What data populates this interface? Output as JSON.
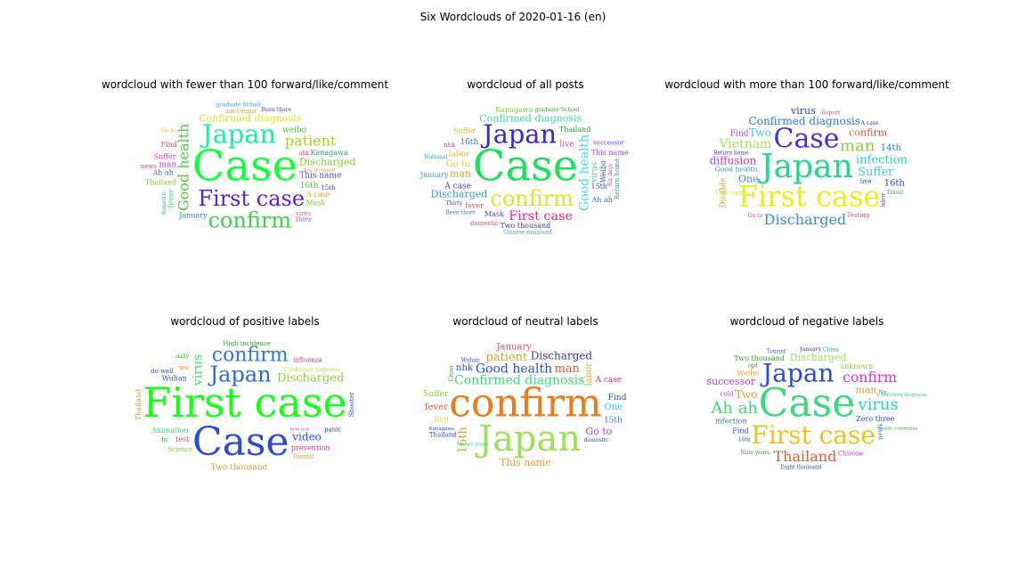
{
  "figure": {
    "suptitle": "Six Wordclouds of 2020-01-16 (en)"
  },
  "chart_data": [
    {
      "type": "wordcloud",
      "title": "wordcloud with fewer than 100 forward/like/comment",
      "words": [
        {
          "text": "Case",
          "size": 48,
          "color": "#16ff3a"
        },
        {
          "text": "Japan",
          "size": 48,
          "color": "#14f2a0"
        },
        {
          "text": "First case",
          "size": 24,
          "color": "#5a1fd6"
        },
        {
          "text": "confirm",
          "size": 24,
          "color": "#3fd14a"
        },
        {
          "text": "Good health",
          "size": 16,
          "color": "#4fca3a"
        },
        {
          "text": "patient",
          "size": 16,
          "color": "#a4d816"
        },
        {
          "text": "Confirmed diagnosis",
          "size": 11,
          "color": "#d6e81a"
        },
        {
          "text": "Discharged",
          "size": 11,
          "color": "#7bd02d"
        },
        {
          "text": "This name",
          "size": 9,
          "color": "#4a3ff0"
        },
        {
          "text": "weibo",
          "size": 9,
          "color": "#3ed12a"
        },
        {
          "text": "16th",
          "size": 9,
          "color": "#4ec825"
        },
        {
          "text": "Kanagawa",
          "size": 8,
          "color": "#2a9d7a"
        },
        {
          "text": "Ah ah",
          "size": 8,
          "color": "#3a6dd0"
        },
        {
          "text": "Suffer",
          "size": 8,
          "color": "#c03ad9"
        },
        {
          "text": "Thailand",
          "size": 8,
          "color": "#7ad32f"
        },
        {
          "text": "A case",
          "size": 8,
          "color": "#f0a014"
        },
        {
          "text": "man",
          "size": 9,
          "color": "#c03ad9"
        },
        {
          "text": "Find",
          "size": 8,
          "color": "#e0506a"
        },
        {
          "text": "fever",
          "size": 8,
          "color": "#3ad97a"
        },
        {
          "text": "January",
          "size": 8,
          "color": "#2a7ad9"
        },
        {
          "text": "Mask",
          "size": 8,
          "color": "#7ad32f"
        },
        {
          "text": "successor",
          "size": 7,
          "color": "#d9a030"
        },
        {
          "text": "15th",
          "size": 7,
          "color": "#2a4ad9"
        },
        {
          "text": "virus",
          "size": 7,
          "color": "#e05aa0"
        },
        {
          "text": "news",
          "size": 7,
          "color": "#e0506a"
        },
        {
          "text": "domestic",
          "size": 6,
          "color": "#3a9dd0"
        },
        {
          "text": "Been there",
          "size": 6,
          "color": "#5a3ad9"
        },
        {
          "text": "graduate School",
          "size": 6,
          "color": "#2a9dd0"
        },
        {
          "text": "Two thousand",
          "size": 6,
          "color": "#e0a030"
        },
        {
          "text": "Go to",
          "size": 6,
          "color": "#d9c030"
        },
        {
          "text": "nhk",
          "size": 6,
          "color": "#d9309d"
        },
        {
          "text": "Thirty",
          "size": 6,
          "color": "#c03ad9"
        }
      ]
    },
    {
      "type": "wordcloud",
      "title": "wordcloud of all posts",
      "words": [
        {
          "text": "Case",
          "size": 48,
          "color": "#1ee05a"
        },
        {
          "text": "Japan",
          "size": 48,
          "color": "#2a2ad9"
        },
        {
          "text": "confirm",
          "size": 24,
          "color": "#c9f02a"
        },
        {
          "text": "First case",
          "size": 24,
          "color": "#f0209a"
        },
        {
          "text": "Good health",
          "size": 14,
          "color": "#4ad9e0"
        },
        {
          "text": "Confirmed diagnosis",
          "size": 11,
          "color": "#3ad9a0"
        },
        {
          "text": "Discharged",
          "size": 11,
          "color": "#2a9dd0"
        },
        {
          "text": "man",
          "size": 11,
          "color": "#e0a030"
        },
        {
          "text": "Go to",
          "size": 10,
          "color": "#d9d030"
        },
        {
          "text": "labor",
          "size": 9,
          "color": "#d9c030"
        },
        {
          "text": "Mask",
          "size": 8,
          "color": "#5a3ad9"
        },
        {
          "text": "live",
          "size": 9,
          "color": "#c03ad9"
        },
        {
          "text": "virus",
          "size": 9,
          "color": "#3ad97a"
        },
        {
          "text": "fever",
          "size": 8,
          "color": "#e05a3a"
        },
        {
          "text": "16th",
          "size": 9,
          "color": "#3a6dd0"
        },
        {
          "text": "Thailand",
          "size": 8,
          "color": "#2a9d3a"
        },
        {
          "text": "Suffer",
          "size": 8,
          "color": "#d9c030"
        },
        {
          "text": "Weibo",
          "size": 8,
          "color": "#2a4ad9"
        },
        {
          "text": "This name",
          "size": 8,
          "color": "#c03ad9"
        },
        {
          "text": "Two thousand",
          "size": 8,
          "color": "#3a3a9d"
        },
        {
          "text": "A case",
          "size": 9,
          "color": "#5a3ad9"
        },
        {
          "text": "15th",
          "size": 8,
          "color": "#2a4ad9"
        },
        {
          "text": "January",
          "size": 8,
          "color": "#2a9dd0"
        },
        {
          "text": "Ah ah",
          "size": 8,
          "color": "#3a6dd0"
        },
        {
          "text": "Kanagawa",
          "size": 8,
          "color": "#7ad32f"
        },
        {
          "text": "Return home",
          "size": 7,
          "color": "#3a9d7a"
        },
        {
          "text": "successor",
          "size": 7,
          "color": "#7a3ad9"
        },
        {
          "text": "domestic",
          "size": 7,
          "color": "#e0506a"
        },
        {
          "text": "graduate School",
          "size": 6,
          "color": "#3a9d3a"
        },
        {
          "text": "Been there",
          "size": 6,
          "color": "#2a7ad9"
        },
        {
          "text": "Chinese mainland",
          "size": 6,
          "color": "#3a9dd0"
        },
        {
          "text": "nhk",
          "size": 7,
          "color": "#c03ad9"
        },
        {
          "text": "Six days",
          "size": 6,
          "color": "#c03ad9"
        },
        {
          "text": "Thirty",
          "size": 6,
          "color": "#2a4ad9"
        },
        {
          "text": "National",
          "size": 6,
          "color": "#2a9dd0"
        }
      ]
    },
    {
      "type": "wordcloud",
      "title": "wordcloud with more than 100 forward/like/comment",
      "words": [
        {
          "text": "First case",
          "size": 32,
          "color": "#e8f01a"
        },
        {
          "text": "Japan",
          "size": 36,
          "color": "#20d98a"
        },
        {
          "text": "Case",
          "size": 30,
          "color": "#4a2ad9"
        },
        {
          "text": "Confirmed diagnosis",
          "size": 20,
          "color": "#2a7ad9"
        },
        {
          "text": "Discharged",
          "size": 16,
          "color": "#3a8ad9"
        },
        {
          "text": "man",
          "size": 18,
          "color": "#8ad03a"
        },
        {
          "text": "Good health",
          "size": 13,
          "color": "#2a9dd0"
        },
        {
          "text": "infection",
          "size": 13,
          "color": "#20d0d9"
        },
        {
          "text": "Suffer",
          "size": 13,
          "color": "#40c8e0"
        },
        {
          "text": "Vietnam",
          "size": 14,
          "color": "#a0e05a"
        },
        {
          "text": "diffusion",
          "size": 12,
          "color": "#c03ad9"
        },
        {
          "text": "This name",
          "size": 12,
          "color": "#e0e030"
        },
        {
          "text": "confirm",
          "size": 11,
          "color": "#e0503a"
        },
        {
          "text": "virus",
          "size": 11,
          "color": "#2a4ad9"
        },
        {
          "text": "Two",
          "size": 12,
          "color": "#40c8e0"
        },
        {
          "text": "One",
          "size": 11,
          "color": "#3a8ad9"
        },
        {
          "text": "14th",
          "size": 10,
          "color": "#2a7ad9"
        },
        {
          "text": "16th",
          "size": 10,
          "color": "#2a4ad9"
        },
        {
          "text": "Disable",
          "size": 9,
          "color": "#e0a030"
        },
        {
          "text": "Find",
          "size": 9,
          "color": "#c03ad9"
        },
        {
          "text": "Testing",
          "size": 7,
          "color": "#e0506a"
        },
        {
          "text": "Return home",
          "size": 6,
          "color": "#3a3a9d"
        },
        {
          "text": "live",
          "size": 7,
          "color": "#2a4ad9"
        },
        {
          "text": "Go to",
          "size": 6,
          "color": "#c03ad9"
        },
        {
          "text": "Report",
          "size": 6,
          "color": "#e0506a"
        },
        {
          "text": "labor",
          "size": 6,
          "color": "#3a3a9d"
        },
        {
          "text": "A case",
          "size": 6,
          "color": "#3a3a9d"
        },
        {
          "text": "Travel",
          "size": 6,
          "color": "#3a9d3a"
        }
      ]
    },
    {
      "type": "wordcloud",
      "title": "wordcloud of positive labels",
      "words": [
        {
          "text": "First case",
          "size": 46,
          "color": "#16ff16"
        },
        {
          "text": "Case",
          "size": 44,
          "color": "#2a4ad9"
        },
        {
          "text": "confirm",
          "size": 22,
          "color": "#2a7ad9"
        },
        {
          "text": "Japan",
          "size": 24,
          "color": "#2a6ad9"
        },
        {
          "text": "Discharged",
          "size": 13,
          "color": "#8ad03a"
        },
        {
          "text": "virus",
          "size": 14,
          "color": "#3ad97a"
        },
        {
          "text": "video",
          "size": 12,
          "color": "#2a4ad9"
        },
        {
          "text": "Confirmed diagnosis",
          "size": 10,
          "color": "#c9e03a"
        },
        {
          "text": "Two thousand",
          "size": 9,
          "color": "#e0a030"
        },
        {
          "text": "Animation",
          "size": 8,
          "color": "#3ad97a"
        },
        {
          "text": "Wuhan",
          "size": 8,
          "color": "#2a4ad9"
        },
        {
          "text": "Thailand",
          "size": 8,
          "color": "#e0a030"
        },
        {
          "text": "prevention",
          "size": 8,
          "color": "#d9309d"
        },
        {
          "text": "test",
          "size": 8,
          "color": "#e0506a"
        },
        {
          "text": "we",
          "size": 8,
          "color": "#e0a030"
        },
        {
          "text": "Science",
          "size": 7,
          "color": "#7ad32f"
        },
        {
          "text": "High incidence",
          "size": 7,
          "color": "#2a9d3a"
        },
        {
          "text": "influenza",
          "size": 7,
          "color": "#d9309d"
        },
        {
          "text": "Shooter",
          "size": 7,
          "color": "#2a4ad9"
        },
        {
          "text": "panic",
          "size": 7,
          "color": "#3a3a9d"
        },
        {
          "text": "Tourist",
          "size": 7,
          "color": "#e0a030"
        },
        {
          "text": "do well",
          "size": 7,
          "color": "#2a4ad9"
        },
        {
          "text": "how is it",
          "size": 6,
          "color": "#c03ad9"
        },
        {
          "text": "daily",
          "size": 6,
          "color": "#3a9d3a"
        },
        {
          "text": "In",
          "size": 7,
          "color": "#3a9d3a"
        }
      ]
    },
    {
      "type": "wordcloud",
      "title": "wordcloud of neutral labels",
      "words": [
        {
          "text": "confirm",
          "size": 44,
          "color": "#f07a1a"
        },
        {
          "text": "Japan",
          "size": 40,
          "color": "#a0e05a"
        },
        {
          "text": "Confirmed diagnosis",
          "size": 14,
          "color": "#3ad97a"
        },
        {
          "text": "Good health",
          "size": 14,
          "color": "#2a4ad9"
        },
        {
          "text": "16th",
          "size": 13,
          "color": "#e0a030"
        },
        {
          "text": "patient",
          "size": 13,
          "color": "#e0a030"
        },
        {
          "text": "Discharged",
          "size": 12,
          "color": "#3a3a9d"
        },
        {
          "text": "man",
          "size": 13,
          "color": "#e05a3a"
        },
        {
          "text": "This name",
          "size": 11,
          "color": "#e0a030"
        },
        {
          "text": "Go to",
          "size": 11,
          "color": "#c03ad9"
        },
        {
          "text": "Kanagawa",
          "size": 9,
          "color": "#2a4ad9"
        },
        {
          "text": "January",
          "size": 10,
          "color": "#e0506a"
        },
        {
          "text": "labor",
          "size": 10,
          "color": "#e0a030"
        },
        {
          "text": "nhk",
          "size": 10,
          "color": "#2a4ad9"
        },
        {
          "text": "fever",
          "size": 10,
          "color": "#e05a3a"
        },
        {
          "text": "One",
          "size": 10,
          "color": "#20d0d9"
        },
        {
          "text": "15th",
          "size": 9,
          "color": "#2a7ad9"
        },
        {
          "text": "Suffer",
          "size": 9,
          "color": "#8ad03a"
        },
        {
          "text": "Return home",
          "size": 9,
          "color": "#3ad97a"
        },
        {
          "text": "A case",
          "size": 9,
          "color": "#d9309d"
        },
        {
          "text": "Find",
          "size": 9,
          "color": "#2a4ad9"
        },
        {
          "text": "live",
          "size": 9,
          "color": "#c9e03a"
        },
        {
          "text": "Thailand",
          "size": 7,
          "color": "#2a4ad9"
        },
        {
          "text": "domestic",
          "size": 6,
          "color": "#3a3a9d"
        },
        {
          "text": "Wuhan",
          "size": 6,
          "color": "#2a4ad9"
        },
        {
          "text": "China",
          "size": 6,
          "color": "#2a9d3a"
        }
      ]
    },
    {
      "type": "wordcloud",
      "title": "wordcloud of negative labels",
      "words": [
        {
          "text": "Case",
          "size": 44,
          "color": "#3ad97a"
        },
        {
          "text": "First case",
          "size": 28,
          "color": "#f0c01a"
        },
        {
          "text": "confirm",
          "size": 26,
          "color": "#d930d9"
        },
        {
          "text": "Japan",
          "size": 28,
          "color": "#2a4ad9"
        },
        {
          "text": "Ah ah",
          "size": 18,
          "color": "#3ad97a"
        },
        {
          "text": "virus",
          "size": 18,
          "color": "#20d0d9"
        },
        {
          "text": "Thailand",
          "size": 16,
          "color": "#e05a3a"
        },
        {
          "text": "man",
          "size": 11,
          "color": "#e0a030"
        },
        {
          "text": "Discharged",
          "size": 11,
          "color": "#a0e05a"
        },
        {
          "text": "Two",
          "size": 12,
          "color": "#e0a030"
        },
        {
          "text": "successor",
          "size": 11,
          "color": "#c03ad9"
        },
        {
          "text": "Confirmed diagnosis",
          "size": 9,
          "color": "#3ad97a"
        },
        {
          "text": "Zero three",
          "size": 8,
          "color": "#2a4ad9"
        },
        {
          "text": "unknown",
          "size": 8,
          "color": "#8ad03a"
        },
        {
          "text": "infection",
          "size": 8,
          "color": "#2a7ad9"
        },
        {
          "text": "Two thousand",
          "size": 8,
          "color": "#3a9d3a"
        },
        {
          "text": "Weibo",
          "size": 8,
          "color": "#e0a030"
        },
        {
          "text": "Find",
          "size": 8,
          "color": "#2a4ad9"
        },
        {
          "text": "news",
          "size": 7,
          "color": "#2a7ad9"
        },
        {
          "text": "cold",
          "size": 7,
          "color": "#c03ad9"
        },
        {
          "text": "Chisone",
          "size": 7,
          "color": "#c03ad9"
        },
        {
          "text": "January",
          "size": 6,
          "color": "#3a3a9d"
        },
        {
          "text": "No",
          "size": 6,
          "color": "#2a9d3a"
        },
        {
          "text": "16th",
          "size": 6,
          "color": "#2a4ad9"
        },
        {
          "text": "Nine years",
          "size": 6,
          "color": "#3a9d3a"
        },
        {
          "text": "Health committee",
          "size": 6,
          "color": "#3a9d3a"
        },
        {
          "text": "Tourist",
          "size": 6,
          "color": "#2a4ad9"
        },
        {
          "text": "cgd",
          "size": 6,
          "color": "#3a9d3a"
        },
        {
          "text": "China",
          "size": 6,
          "color": "#2a9dd0"
        },
        {
          "text": "Eight thousand",
          "size": 6,
          "color": "#2a4ad9"
        }
      ]
    }
  ]
}
